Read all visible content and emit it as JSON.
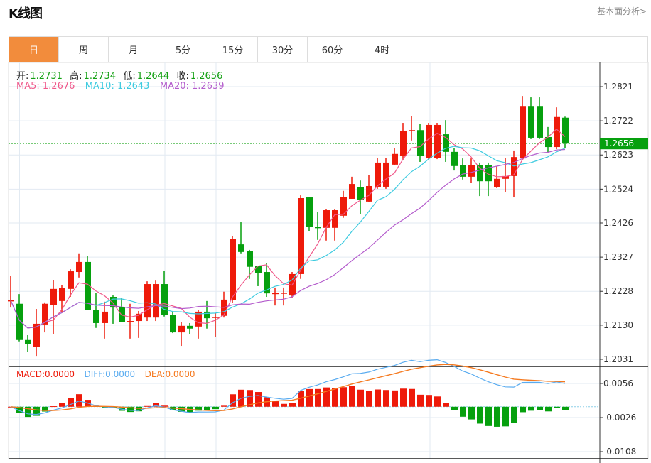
{
  "header": {
    "title": "K线图",
    "fundamental_link": "基本面分析>"
  },
  "tabs": [
    {
      "label": "日",
      "active": true
    },
    {
      "label": "周",
      "active": false
    },
    {
      "label": "月",
      "active": false
    },
    {
      "label": "5分",
      "active": false
    },
    {
      "label": "15分",
      "active": false
    },
    {
      "label": "30分",
      "active": false
    },
    {
      "label": "60分",
      "active": false
    },
    {
      "label": "4时",
      "active": false
    }
  ],
  "ohlc_legend": {
    "open_label": "开:",
    "open": "1.2731",
    "high_label": "高:",
    "high": "1.2734",
    "low_label": "低:",
    "low": "1.2644",
    "close_label": "收:",
    "close": "1.2656"
  },
  "ma_legend": {
    "ma5": "MA5: 1.2676",
    "ma10": "MA10: 1.2643",
    "ma20": "MA20: 1.2639"
  },
  "macd_legend": {
    "macd": "MACD:0.0000",
    "diff": "DIFF:0.0000",
    "dea": "DEA:0.0000"
  },
  "colors": {
    "up": "#ee1a0a",
    "down": "#06a00e",
    "ma5": "#f0588a",
    "ma10": "#3ecbe0",
    "ma20": "#b45ccc",
    "diff": "#5aacf0",
    "dea": "#f57a20",
    "accent": "#f28c3c"
  },
  "chart_data": {
    "type": "candlestick",
    "current_price_label": "1.2656",
    "current_price": 1.2656,
    "price_axis": {
      "ticks": [
        "1.2821",
        "1.2722",
        "1.2623",
        "1.2524",
        "1.2426",
        "1.2327",
        "1.2228",
        "1.2130",
        "1.2031"
      ],
      "range": [
        1.2031,
        1.2821
      ]
    },
    "macd_axis": {
      "ticks": [
        "0.0056",
        "-0.0026",
        "-0.0108"
      ],
      "range": [
        -0.0108,
        0.0056
      ]
    },
    "candles": [
      [
        1.22,
        1.2272,
        1.2181,
        1.2202
      ],
      [
        1.2192,
        1.222,
        1.2083,
        1.2087
      ],
      [
        1.2087,
        1.2101,
        1.2052,
        1.2076
      ],
      [
        1.2066,
        1.2177,
        1.2039,
        1.2134
      ],
      [
        1.2132,
        1.2196,
        1.2109,
        1.2192
      ],
      [
        1.2189,
        1.2261,
        1.2105,
        1.2235
      ],
      [
        1.22,
        1.2245,
        1.2165,
        1.2237
      ],
      [
        1.2235,
        1.2292,
        1.2212,
        1.2286
      ],
      [
        1.2284,
        1.2338,
        1.2268,
        1.2313
      ],
      [
        1.2313,
        1.2331,
        1.2173,
        1.2173
      ],
      [
        1.2175,
        1.2224,
        1.2122,
        1.2136
      ],
      [
        1.2136,
        1.2198,
        1.2091,
        1.2169
      ],
      [
        1.2212,
        1.2216,
        1.2134,
        1.2181
      ],
      [
        1.2183,
        1.221,
        1.2138,
        1.2138
      ],
      [
        1.2138,
        1.2192,
        1.2091,
        1.2142
      ],
      [
        1.2142,
        1.2171,
        1.2093,
        1.2163
      ],
      [
        1.2152,
        1.2257,
        1.2142,
        1.2249
      ],
      [
        1.2152,
        1.2259,
        1.2142,
        1.2249
      ],
      [
        1.2249,
        1.2288,
        1.2155,
        1.2159
      ],
      [
        1.2159,
        1.2171,
        1.2107,
        1.2109
      ],
      [
        1.2109,
        1.2138,
        1.207,
        1.2128
      ],
      [
        1.2128,
        1.2136,
        1.2105,
        1.212
      ],
      [
        1.2126,
        1.2175,
        1.2091,
        1.2169
      ],
      [
        1.2169,
        1.22,
        1.212,
        1.215
      ],
      [
        1.2152,
        1.2165,
        1.2095,
        1.2154
      ],
      [
        1.2157,
        1.2227,
        1.2152,
        1.2204
      ],
      [
        1.2202,
        1.2389,
        1.2194,
        1.2379
      ],
      [
        1.2364,
        1.2428,
        1.2338,
        1.2342
      ],
      [
        1.2344,
        1.2348,
        1.2264,
        1.2299
      ],
      [
        1.2301,
        1.2301,
        1.2243,
        1.2282
      ],
      [
        1.2284,
        1.2309,
        1.2212,
        1.2222
      ],
      [
        1.2222,
        1.2239,
        1.2187,
        1.2223
      ],
      [
        1.2222,
        1.2239,
        1.2187,
        1.2224
      ],
      [
        1.2216,
        1.2284,
        1.221,
        1.2278
      ],
      [
        1.2278,
        1.2506,
        1.2264,
        1.2498
      ],
      [
        1.25,
        1.2502,
        1.2403,
        1.2414
      ],
      [
        1.2414,
        1.2457,
        1.2377,
        1.2412
      ],
      [
        1.2412,
        1.2465,
        1.2375,
        1.2463
      ],
      [
        1.2412,
        1.2465,
        1.2375,
        1.2463
      ],
      [
        1.2447,
        1.2519,
        1.2441,
        1.2502
      ],
      [
        1.2496,
        1.256,
        1.2496,
        1.2539
      ],
      [
        1.2529,
        1.2549,
        1.2451,
        1.2492
      ],
      [
        1.2488,
        1.2564,
        1.2486,
        1.2533
      ],
      [
        1.2531,
        1.2615,
        1.2525,
        1.2601
      ],
      [
        1.2531,
        1.2615,
        1.2525,
        1.2601
      ],
      [
        1.2595,
        1.2644,
        1.2593,
        1.2626
      ],
      [
        1.2621,
        1.2716,
        1.2609,
        1.2693
      ],
      [
        1.2693,
        1.2735,
        1.2665,
        1.2695
      ],
      [
        1.2695,
        1.2712,
        1.2603,
        1.2621
      ],
      [
        1.2615,
        1.2716,
        1.2611,
        1.271
      ],
      [
        1.2615,
        1.2716,
        1.2611,
        1.271
      ],
      [
        1.2683,
        1.2724,
        1.2603,
        1.2632
      ],
      [
        1.2632,
        1.2642,
        1.2578,
        1.2591
      ],
      [
        1.2593,
        1.2613,
        1.2552,
        1.256
      ],
      [
        1.256,
        1.2613,
        1.2543,
        1.2593
      ],
      [
        1.2593,
        1.2601,
        1.2504,
        1.2547
      ],
      [
        1.2593,
        1.2601,
        1.2504,
        1.2547
      ],
      [
        1.2529,
        1.2591,
        1.2527,
        1.2554
      ],
      [
        1.2554,
        1.2615,
        1.2515,
        1.2562
      ],
      [
        1.2562,
        1.2636,
        1.25,
        1.2617
      ],
      [
        1.2613,
        1.2794,
        1.2611,
        1.2765
      ],
      [
        1.2765,
        1.279,
        1.2669,
        1.2673
      ],
      [
        1.2765,
        1.279,
        1.2669,
        1.2673
      ],
      [
        1.2675,
        1.2704,
        1.263,
        1.2646
      ],
      [
        1.2646,
        1.2761,
        1.264,
        1.2733
      ],
      [
        1.2731,
        1.2734,
        1.2644,
        1.2656
      ]
    ]
  }
}
